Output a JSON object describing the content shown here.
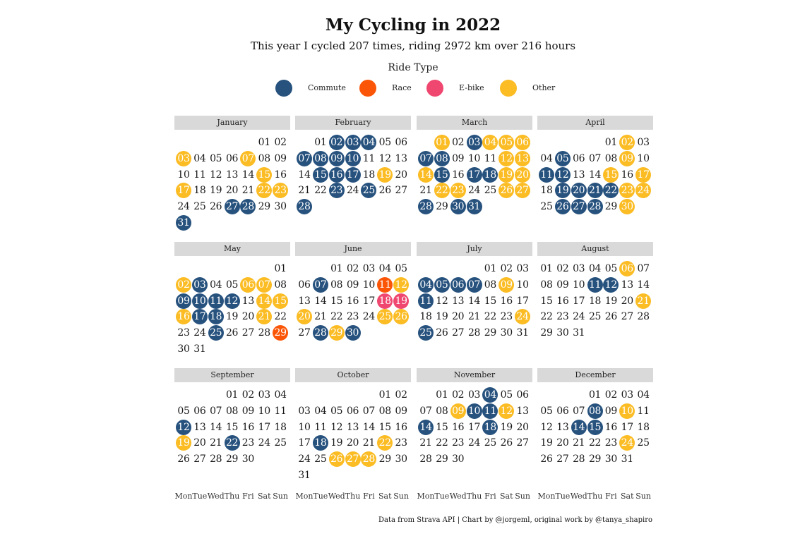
{
  "chart_data": {
    "type": "calendar-heatmap",
    "title": "My Cycling in 2022",
    "subtitle": "This year I cycled 207 times, riding 2972 km over 216 hours",
    "legend": {
      "title": "Ride Type",
      "items": [
        {
          "key": "C",
          "label": "Commute",
          "color": "#27527e"
        },
        {
          "key": "R",
          "label": "Race",
          "color": "#fb5607"
        },
        {
          "key": "E",
          "label": "E-bike",
          "color": "#ef476f"
        },
        {
          "key": "O",
          "label": "Other",
          "color": "#fbbc24"
        }
      ]
    },
    "year": 2022,
    "weekdays": [
      "Mon",
      "Tue",
      "Wed",
      "Thu",
      "Fri",
      "Sat",
      "Sun"
    ],
    "months": [
      {
        "name": "January",
        "rides": {
          "3": "O",
          "7": "O",
          "15": "O",
          "17": "O",
          "22": "O",
          "23": "O",
          "27": "C",
          "28": "C",
          "31": "C"
        }
      },
      {
        "name": "February",
        "rides": {
          "2": "C",
          "3": "C",
          "4": "C",
          "7": "C",
          "8": "C",
          "9": "C",
          "10": "C",
          "15": "C",
          "16": "C",
          "17": "C",
          "19": "O",
          "23": "C",
          "25": "C",
          "28": "C"
        }
      },
      {
        "name": "March",
        "rides": {
          "1": "O",
          "3": "C",
          "4": "O",
          "5": "O",
          "6": "O",
          "7": "C",
          "8": "C",
          "12": "O",
          "13": "O",
          "14": "O",
          "15": "C",
          "17": "C",
          "18": "C",
          "19": "O",
          "20": "O",
          "22": "O",
          "23": "O",
          "26": "O",
          "27": "O",
          "28": "C",
          "30": "C",
          "31": "C"
        }
      },
      {
        "name": "April",
        "rides": {
          "2": "O",
          "5": "C",
          "9": "O",
          "11": "C",
          "12": "C",
          "15": "O",
          "17": "O",
          "19": "C",
          "20": "C",
          "21": "C",
          "22": "C",
          "23": "O",
          "24": "O",
          "26": "C",
          "27": "C",
          "28": "C",
          "30": "O"
        }
      },
      {
        "name": "May",
        "rides": {
          "2": "O",
          "3": "C",
          "6": "O",
          "7": "O",
          "9": "C",
          "10": "C",
          "11": "C",
          "12": "C",
          "14": "O",
          "15": "O",
          "16": "O",
          "17": "C",
          "18": "C",
          "21": "O",
          "25": "C",
          "29": "R"
        }
      },
      {
        "name": "June",
        "rides": {
          "7": "C",
          "11": "R",
          "12": "O",
          "18": "E",
          "19": "E",
          "20": "O",
          "25": "O",
          "26": "O",
          "28": "C",
          "29": "O",
          "30": "C"
        }
      },
      {
        "name": "July",
        "rides": {
          "4": "C",
          "5": "C",
          "6": "C",
          "7": "C",
          "9": "O",
          "11": "C",
          "24": "O",
          "25": "C"
        }
      },
      {
        "name": "August",
        "rides": {
          "6": "O",
          "11": "C",
          "12": "C",
          "21": "O"
        }
      },
      {
        "name": "September",
        "rides": {
          "12": "C",
          "19": "O",
          "22": "C"
        }
      },
      {
        "name": "October",
        "rides": {
          "18": "C",
          "22": "O",
          "26": "O",
          "27": "O",
          "28": "O"
        }
      },
      {
        "name": "November",
        "rides": {
          "4": "C",
          "9": "O",
          "10": "C",
          "11": "C",
          "12": "O",
          "14": "C",
          "18": "C"
        }
      },
      {
        "name": "December",
        "rides": {
          "8": "C",
          "10": "O",
          "14": "C",
          "15": "C",
          "24": "O"
        }
      }
    ],
    "caption": "Data from Strava API | Chart by @jorgeml, original work by @tanya_shapiro"
  }
}
